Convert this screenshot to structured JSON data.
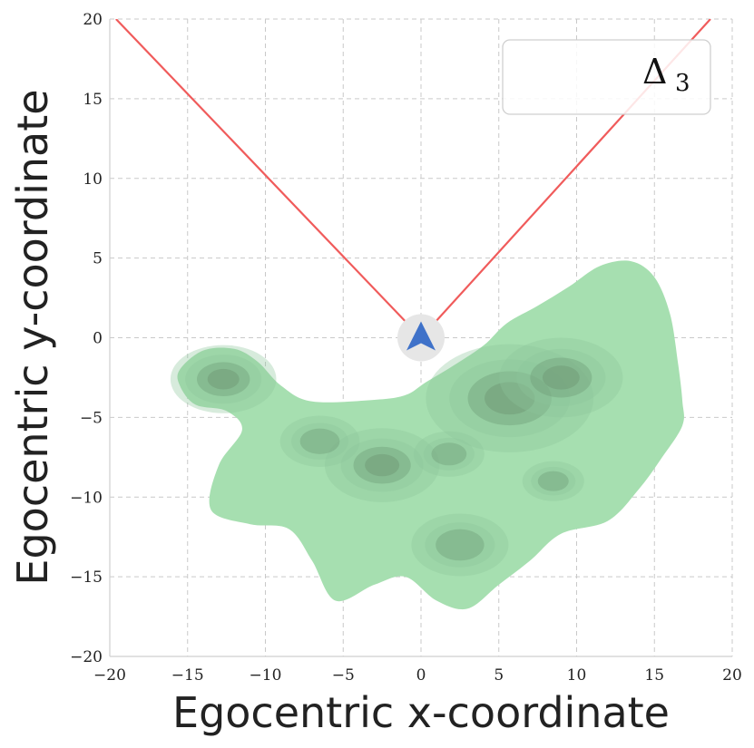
{
  "chart_data": {
    "type": "contour",
    "title": "",
    "xlabel": "Egocentric x-coordinate",
    "ylabel": "Egocentric y-coordinate",
    "xlim": [
      -20,
      20
    ],
    "ylim": [
      -20,
      20
    ],
    "xticks": [
      -20,
      -15,
      -10,
      -5,
      0,
      5,
      10,
      15,
      20
    ],
    "yticks": [
      -20,
      -15,
      -10,
      -5,
      0,
      5,
      10,
      15,
      20
    ],
    "xtick_labels": [
      "−20",
      "−15",
      "−10",
      "−5",
      "0",
      "5",
      "10",
      "15",
      "20"
    ],
    "ytick_labels": [
      "−20",
      "−15",
      "−10",
      "−5",
      "0",
      "5",
      "10",
      "15",
      "20"
    ],
    "grid": true,
    "legend": {
      "placement": "top-right",
      "entries": [
        {
          "label": "Δ",
          "subscript": "3"
        }
      ]
    },
    "field_of_view_lines": [
      {
        "name": "left",
        "points": [
          [
            0.0,
            0.0
          ],
          [
            -19.6,
            20.0
          ]
        ]
      },
      {
        "name": "right",
        "points": [
          [
            0.0,
            0.0
          ],
          [
            18.6,
            20.0
          ]
        ]
      }
    ],
    "agent_marker": {
      "x": 0,
      "y": 0,
      "shape": "arrow-up"
    },
    "density": {
      "outer_boundary": [
        [
          -15.5,
          -2.0
        ],
        [
          -14.0,
          -0.8
        ],
        [
          -12.0,
          -0.7
        ],
        [
          -10.5,
          -1.5
        ],
        [
          -9.0,
          -3.0
        ],
        [
          -7.0,
          -4.0
        ],
        [
          -3.0,
          -3.9
        ],
        [
          -1.0,
          -3.6
        ],
        [
          0.3,
          -2.8
        ],
        [
          2.0,
          -1.8
        ],
        [
          4.0,
          -0.5
        ],
        [
          5.5,
          0.9
        ],
        [
          7.5,
          2.0
        ],
        [
          9.5,
          3.2
        ],
        [
          11.5,
          4.5
        ],
        [
          13.5,
          4.8
        ],
        [
          15.0,
          3.8
        ],
        [
          16.0,
          1.5
        ],
        [
          16.5,
          -1.5
        ],
        [
          16.8,
          -4.0
        ],
        [
          16.8,
          -5.5
        ],
        [
          15.5,
          -7.5
        ],
        [
          14.0,
          -9.5
        ],
        [
          12.0,
          -11.5
        ],
        [
          9.0,
          -12.3
        ],
        [
          7.0,
          -14.0
        ],
        [
          5.0,
          -15.5
        ],
        [
          3.0,
          -17.0
        ],
        [
          1.0,
          -16.5
        ],
        [
          -1.0,
          -15.0
        ],
        [
          -3.0,
          -15.5
        ],
        [
          -5.5,
          -16.5
        ],
        [
          -7.0,
          -14.0
        ],
        [
          -8.5,
          -12.0
        ],
        [
          -11.0,
          -11.7
        ],
        [
          -13.5,
          -10.8
        ],
        [
          -13.0,
          -8.0
        ],
        [
          -11.5,
          -5.8
        ],
        [
          -12.5,
          -4.6
        ],
        [
          -14.5,
          -4.2
        ],
        [
          -15.5,
          -3.0
        ]
      ],
      "peaks": [
        {
          "x": 5.7,
          "y": -3.8,
          "intensity": 0.95
        },
        {
          "x": 9.0,
          "y": -2.5,
          "intensity": 0.7
        },
        {
          "x": -2.5,
          "y": -8.0,
          "intensity": 0.65
        },
        {
          "x": -12.7,
          "y": -2.6,
          "intensity": 0.6
        },
        {
          "x": 2.5,
          "y": -13.0,
          "intensity": 0.55
        },
        {
          "x": 1.8,
          "y": -7.3,
          "intensity": 0.4
        },
        {
          "x": -6.5,
          "y": -6.5,
          "intensity": 0.45
        },
        {
          "x": 8.5,
          "y": -9.0,
          "intensity": 0.35
        }
      ],
      "colors": {
        "base": "#a6dfb0",
        "mid": "#8cc59a",
        "dark": "#6f9a76"
      }
    },
    "colors": {
      "fov_line": "#f05b5b",
      "grid": "#c9c9c9",
      "agent_arrow": "#3f72c9",
      "agent_disc": "#e6e6e6"
    }
  }
}
